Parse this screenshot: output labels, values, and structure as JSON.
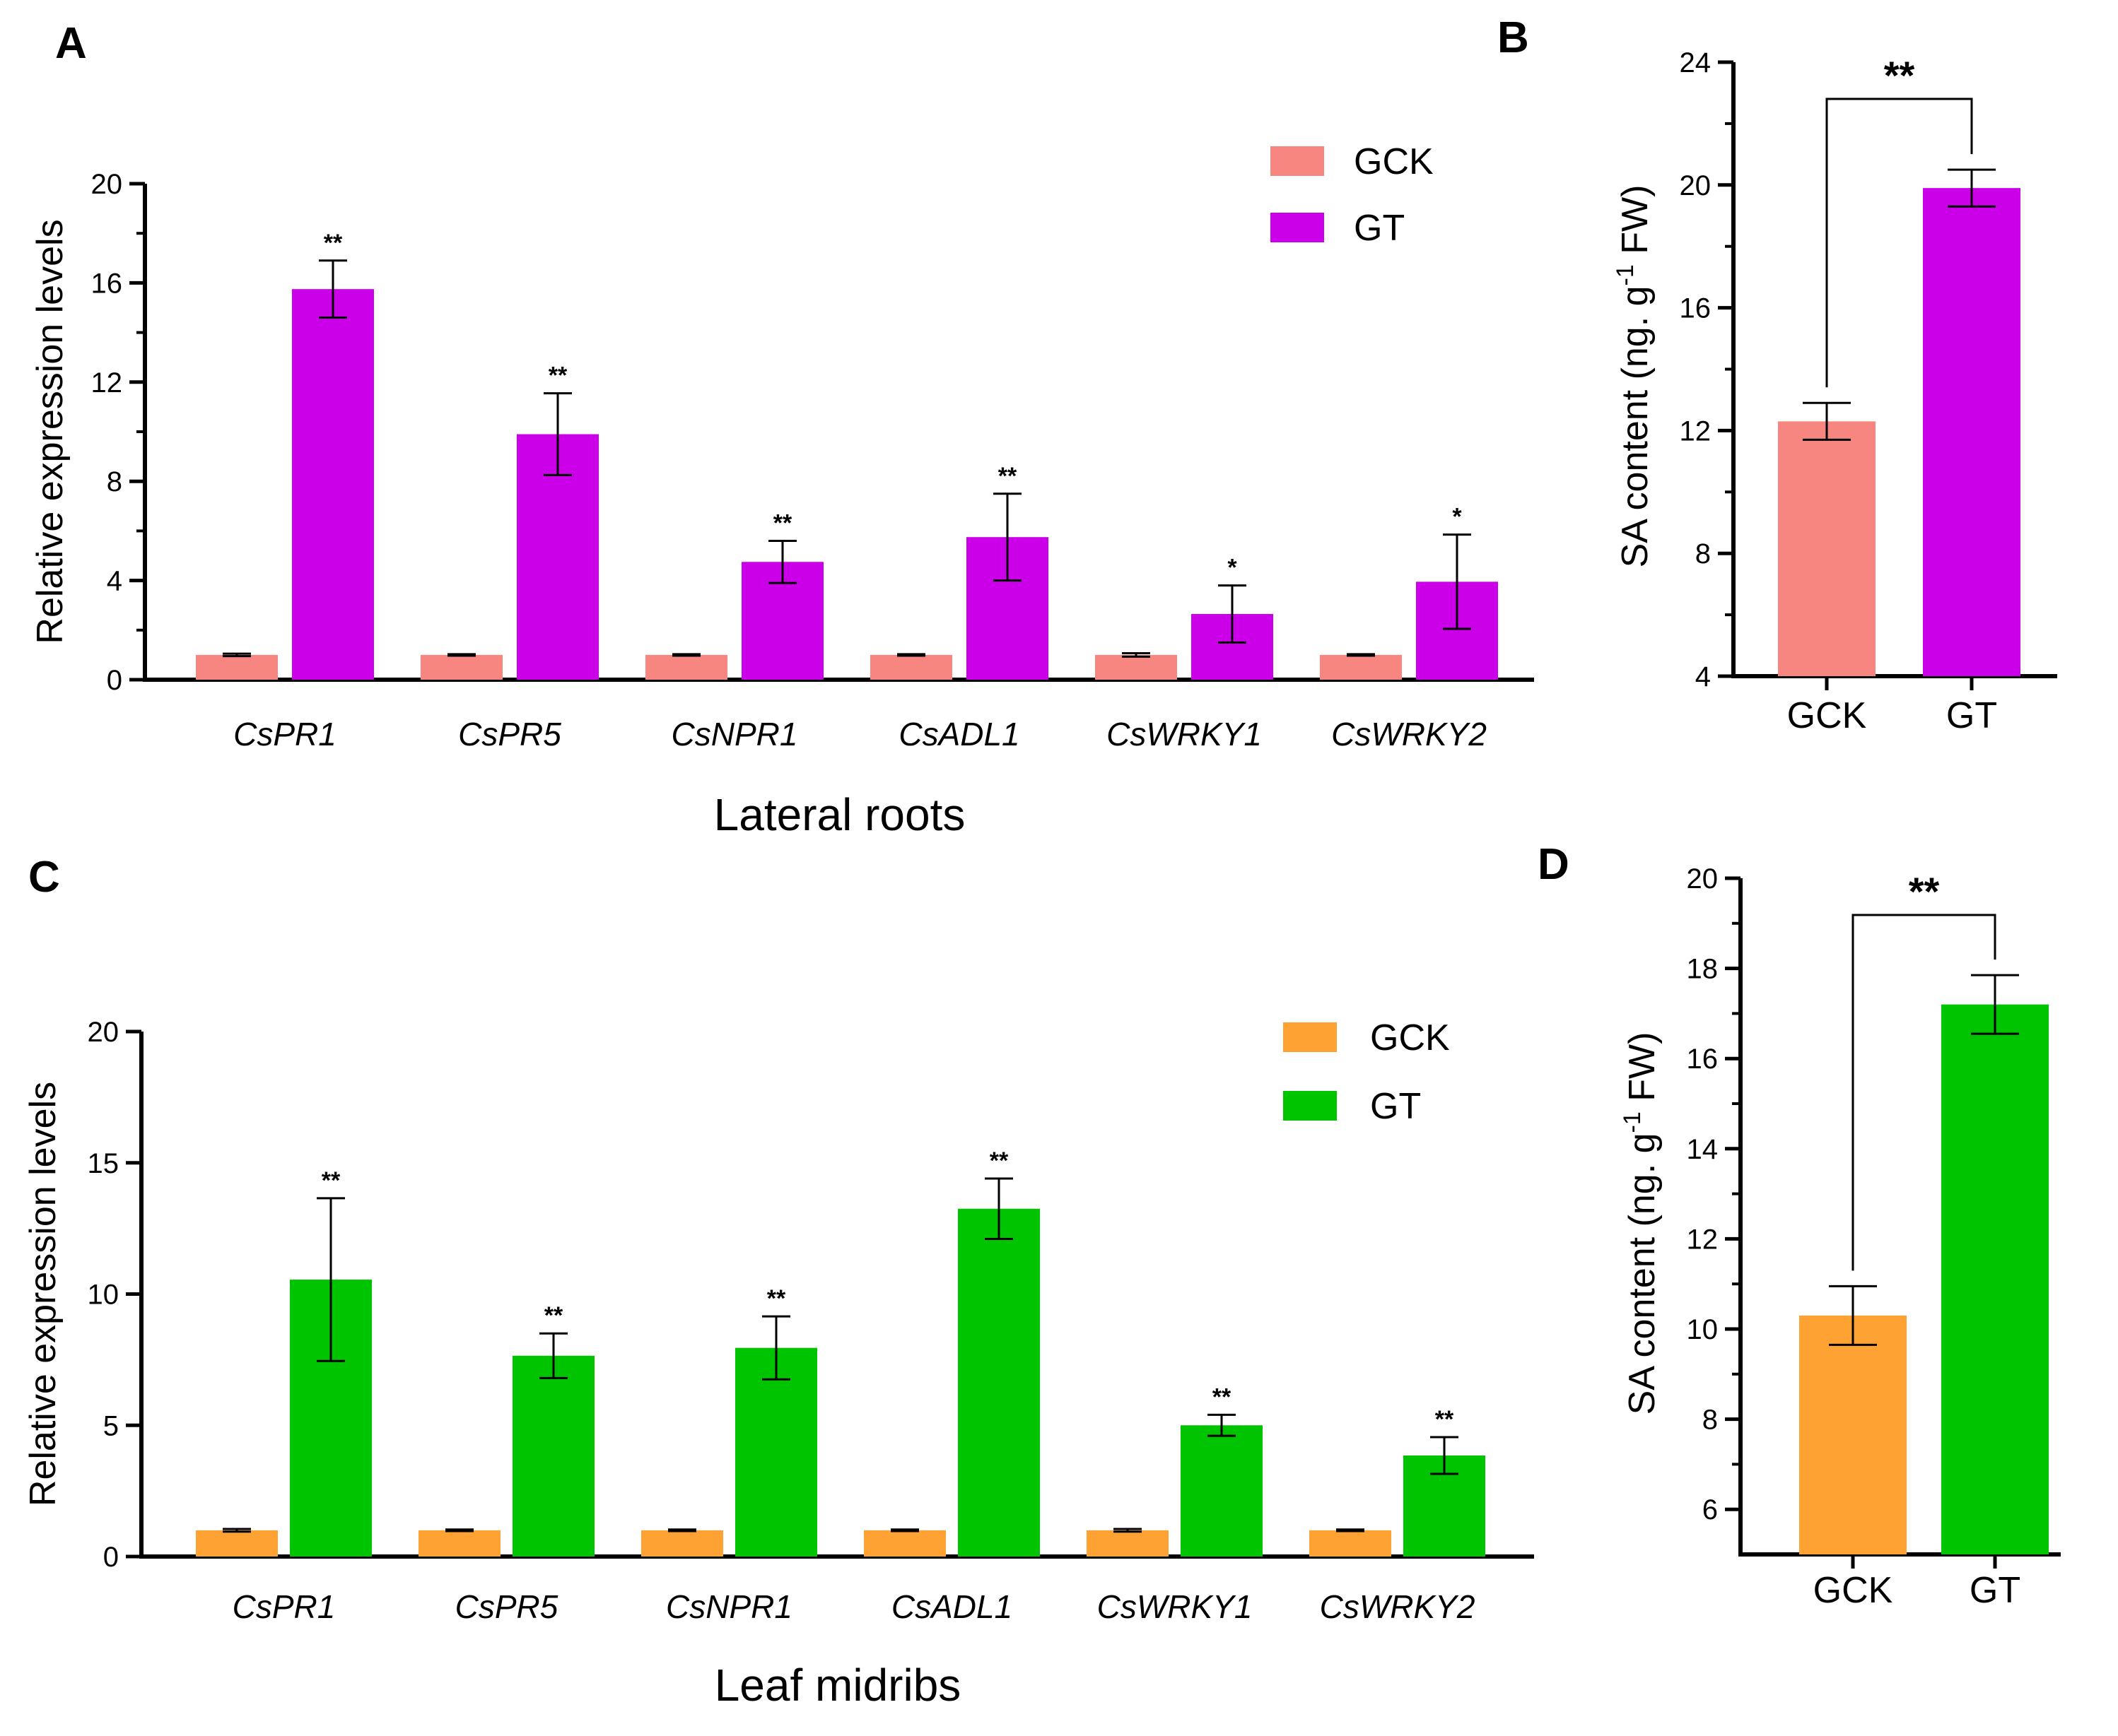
{
  "figure": {
    "panels": [
      "A",
      "B",
      "C",
      "D"
    ]
  },
  "colors": {
    "gck_roots": "#f78680",
    "gt_roots": "#cc00e8",
    "gck_midribs": "#ffa234",
    "gt_midribs": "#00c400",
    "axis": "#000000"
  },
  "chart_data": [
    {
      "id": "A",
      "type": "bar",
      "letter": "A",
      "title": "",
      "xlabel": "Lateral roots",
      "ylabel": "Relative expression levels",
      "categories": [
        "CsPR1",
        "CsPR5",
        "CsNPR1",
        "CsADL1",
        "CsWRKY1",
        "CsWRKY2"
      ],
      "ylim": [
        0,
        20
      ],
      "yticks": [
        0,
        4,
        8,
        12,
        16,
        20
      ],
      "yticks_labels": [
        "0",
        "4",
        "8",
        "12",
        "16",
        "20"
      ],
      "minor_ticks": 1,
      "series": [
        {
          "name": "GCK",
          "color": "#f78680",
          "values": [
            1,
            1,
            1,
            1,
            1,
            1
          ],
          "errors": [
            0.05,
            0.03,
            0.03,
            0.03,
            0.07,
            0.03
          ]
        },
        {
          "name": "GT",
          "color": "#cc00e8",
          "values": [
            15.75,
            9.9,
            4.75,
            5.75,
            2.65,
            3.95
          ],
          "errors": [
            1.15,
            1.65,
            0.85,
            1.75,
            1.15,
            1.9
          ],
          "significance": [
            "**",
            "**",
            "**",
            "**",
            "*",
            "*"
          ]
        }
      ],
      "legend": {
        "entries": [
          "GCK",
          "GT"
        ],
        "placement": "top-right"
      }
    },
    {
      "id": "B",
      "type": "bar",
      "letter": "B",
      "title": "",
      "xlabel": "",
      "ylabel": "SA content (ng. g-1 FW)",
      "ylabel_parts": {
        "before": "SA content (ng. g",
        "sup": "-1",
        "after": " FW)"
      },
      "categories": [
        "GCK",
        "GT"
      ],
      "ylim": [
        4,
        24
      ],
      "yticks": [
        4,
        8,
        12,
        16,
        20,
        24
      ],
      "yticks_labels": [
        "4",
        "8",
        "12",
        "16",
        "20",
        "24"
      ],
      "minor_ticks": 1,
      "values": [
        12.3,
        19.9
      ],
      "errors": [
        0.6,
        0.6
      ],
      "colors": [
        "#f78680",
        "#cc00e8"
      ],
      "significance": "**"
    },
    {
      "id": "C",
      "type": "bar",
      "letter": "C",
      "title": "",
      "xlabel": "Leaf midribs",
      "ylabel": "Relative expression levels",
      "categories": [
        "CsPR1",
        "CsPR5",
        "CsNPR1",
        "CsADL1",
        "CsWRKY1",
        "CsWRKY2"
      ],
      "ylim": [
        0,
        20
      ],
      "yticks": [
        0,
        5,
        10,
        15,
        20
      ],
      "yticks_labels": [
        "0",
        "5",
        "10",
        "15",
        "20"
      ],
      "minor_ticks": 0,
      "series": [
        {
          "name": "GCK",
          "color": "#ffa234",
          "values": [
            1,
            1,
            1,
            1,
            1,
            1
          ],
          "errors": [
            0.05,
            0.03,
            0.03,
            0.03,
            0.05,
            0.03
          ]
        },
        {
          "name": "GT",
          "color": "#00c400",
          "values": [
            10.55,
            7.65,
            7.95,
            13.25,
            5.0,
            3.85
          ],
          "errors": [
            3.1,
            0.85,
            1.2,
            1.15,
            0.4,
            0.7
          ],
          "significance": [
            "**",
            "**",
            "**",
            "**",
            "**",
            "**"
          ]
        }
      ],
      "legend": {
        "entries": [
          "GCK",
          "GT"
        ],
        "placement": "top-right"
      }
    },
    {
      "id": "D",
      "type": "bar",
      "letter": "D",
      "title": "",
      "xlabel": "",
      "ylabel": "SA content (ng. g-1 FW)",
      "ylabel_parts": {
        "before": "SA content (ng. g",
        "sup": "-1",
        "after": " FW)"
      },
      "categories": [
        "GCK",
        "GT"
      ],
      "ylim": [
        5,
        20
      ],
      "yticks": [
        6,
        8,
        10,
        12,
        14,
        16,
        18,
        20
      ],
      "yticks_labels": [
        "6",
        "8",
        "10",
        "12",
        "14",
        "16",
        "18",
        "20"
      ],
      "minor_ticks": 1,
      "values": [
        10.3,
        17.2
      ],
      "errors": [
        0.65,
        0.65
      ],
      "colors": [
        "#ffa234",
        "#00c400"
      ],
      "significance": "**"
    }
  ]
}
